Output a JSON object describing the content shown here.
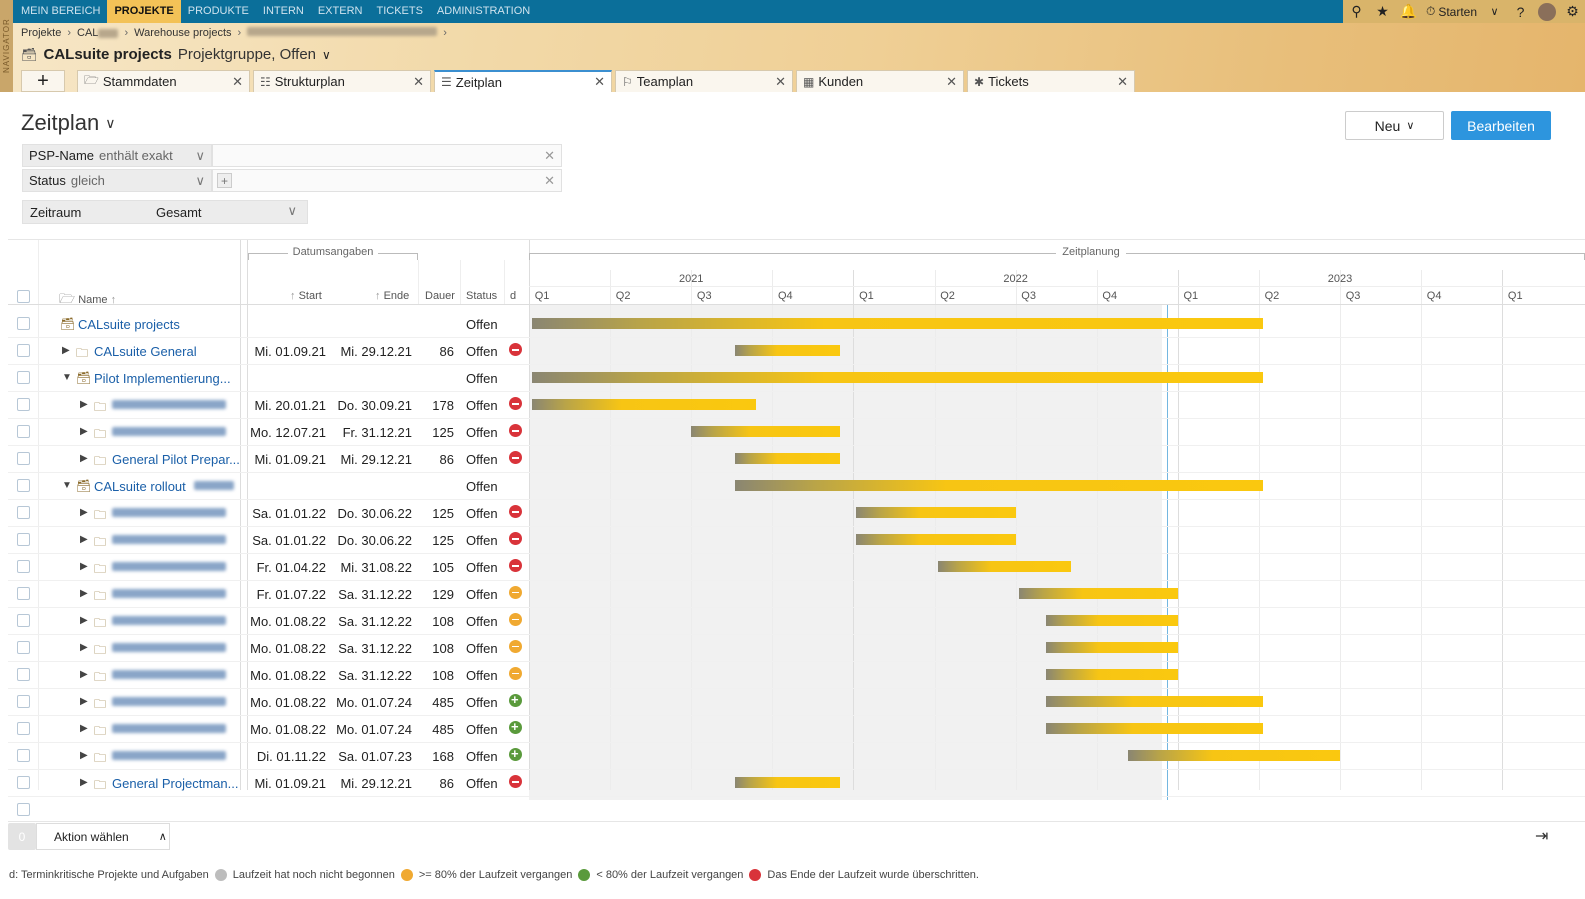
{
  "topbar": {
    "navigator_label": "NAVIGATOR",
    "menu": [
      "MEIN BEREICH",
      "PROJEKTE",
      "PRODUKTE",
      "INTERN",
      "EXTERN",
      "TICKETS",
      "ADMINISTRATION"
    ],
    "active_menu": "PROJEKTE",
    "start_label": "Starten"
  },
  "header": {
    "breadcrumb": [
      "Projekte",
      "CAL",
      "Warehouse projects"
    ],
    "project_name": "CALsuite projects",
    "project_type": "Projektgruppe, Offen",
    "tabs": [
      {
        "label": "Stammdaten",
        "icon": "folder-icon"
      },
      {
        "label": "Strukturplan",
        "icon": "structure-icon"
      },
      {
        "label": "Zeitplan",
        "icon": "timeline-icon",
        "active": true
      },
      {
        "label": "Teamplan",
        "icon": "team-icon"
      },
      {
        "label": "Kunden",
        "icon": "customers-icon"
      },
      {
        "label": "Tickets",
        "icon": "tickets-icon"
      }
    ]
  },
  "page": {
    "title": "Zeitplan",
    "new_label": "Neu",
    "edit_label": "Bearbeiten"
  },
  "filters": {
    "psp": {
      "field": "PSP-Name",
      "op": "enthält exakt",
      "value": ""
    },
    "status": {
      "field": "Status",
      "op": "gleich",
      "value": ""
    },
    "zeitraum": {
      "field": "Zeitraum",
      "value": "Gesamt"
    }
  },
  "grid": {
    "group_dates": "Datumsangaben",
    "group_plan": "Zeitplanung",
    "col_name": "Name",
    "col_start": "Start",
    "col_end": "Ende",
    "col_duration": "Dauer",
    "col_status": "Status",
    "col_d": "d",
    "years": [
      "2021",
      "2022",
      "2023"
    ],
    "quarters": [
      "Q1",
      "Q2",
      "Q3",
      "Q4",
      "Q1",
      "Q2",
      "Q3",
      "Q4",
      "Q1",
      "Q2",
      "Q3",
      "Q4",
      "Q1"
    ],
    "rows": [
      {
        "name": "CALsuite projects",
        "level": 0,
        "toggle": "none",
        "icon": "group",
        "start": "",
        "end": "",
        "dur": "",
        "status": "Offen",
        "d": "",
        "bar": [
          0,
          9.05
        ]
      },
      {
        "name": "CALsuite General",
        "level": 1,
        "toggle": "closed",
        "icon": "folder",
        "start": "Mi. 01.09.21",
        "end": "Mi. 29.12.21",
        "dur": "86",
        "status": "Offen",
        "d": "red",
        "bar": [
          2.5,
          3.83
        ]
      },
      {
        "name": "Pilot Implementierung...",
        "level": 1,
        "toggle": "open",
        "icon": "group",
        "start": "",
        "end": "",
        "dur": "",
        "status": "Offen",
        "d": "",
        "bar": [
          0,
          9.05
        ]
      },
      {
        "name": "",
        "level": 2,
        "toggle": "closed",
        "icon": "folder",
        "blur": true,
        "start": "Mi. 20.01.21",
        "end": "Do. 30.09.21",
        "dur": "178",
        "status": "Offen",
        "d": "red",
        "bar": [
          0,
          2.8
        ]
      },
      {
        "name": "",
        "level": 2,
        "toggle": "closed",
        "icon": "folder",
        "blur": true,
        "start": "Mo. 12.07.21",
        "end": "Fr. 31.12.21",
        "dur": "125",
        "status": "Offen",
        "d": "red",
        "bar": [
          1.96,
          3.84
        ]
      },
      {
        "name": "General Pilot Prepar...",
        "level": 2,
        "toggle": "closed",
        "icon": "folder",
        "start": "Mi. 01.09.21",
        "end": "Mi. 29.12.21",
        "dur": "86",
        "status": "Offen",
        "d": "red",
        "bar": [
          2.5,
          3.83
        ]
      },
      {
        "name": "CALsuite rollout",
        "level": 1,
        "toggle": "open",
        "icon": "group",
        "blurSuffix": true,
        "start": "",
        "end": "",
        "dur": "",
        "status": "Offen",
        "d": "",
        "bar": [
          2.5,
          9.05
        ]
      },
      {
        "name": "",
        "level": 2,
        "toggle": "closed",
        "icon": "folder",
        "blur": true,
        "start": "Sa. 01.01.22",
        "end": "Do. 30.06.22",
        "dur": "125",
        "status": "Offen",
        "d": "red",
        "bar": [
          4,
          6
        ]
      },
      {
        "name": "",
        "level": 2,
        "toggle": "closed",
        "icon": "folder",
        "blur": true,
        "start": "Sa. 01.01.22",
        "end": "Do. 30.06.22",
        "dur": "125",
        "status": "Offen",
        "d": "red",
        "bar": [
          4,
          6
        ]
      },
      {
        "name": "",
        "level": 2,
        "toggle": "closed",
        "icon": "folder",
        "blur": true,
        "start": "Fr. 01.04.22",
        "end": "Mi. 31.08.22",
        "dur": "105",
        "status": "Offen",
        "d": "red",
        "bar": [
          5,
          6.68
        ]
      },
      {
        "name": "",
        "level": 2,
        "toggle": "closed",
        "icon": "folder",
        "blur": true,
        "start": "Fr. 01.07.22",
        "end": "Sa. 31.12.22",
        "dur": "129",
        "status": "Offen",
        "d": "orange",
        "bar": [
          6,
          8
        ]
      },
      {
        "name": "",
        "level": 2,
        "toggle": "closed",
        "icon": "folder",
        "blur": true,
        "start": "Mo. 01.08.22",
        "end": "Sa. 31.12.22",
        "dur": "108",
        "status": "Offen",
        "d": "orange",
        "bar": [
          6.34,
          8
        ]
      },
      {
        "name": "",
        "level": 2,
        "toggle": "closed",
        "icon": "folder",
        "blur": true,
        "start": "Mo. 01.08.22",
        "end": "Sa. 31.12.22",
        "dur": "108",
        "status": "Offen",
        "d": "orange",
        "bar": [
          6.34,
          8
        ]
      },
      {
        "name": "",
        "level": 2,
        "toggle": "closed",
        "icon": "folder",
        "blur": true,
        "start": "Mo. 01.08.22",
        "end": "Sa. 31.12.22",
        "dur": "108",
        "status": "Offen",
        "d": "orange",
        "bar": [
          6.34,
          8
        ]
      },
      {
        "name": "",
        "level": 2,
        "toggle": "closed",
        "icon": "folder",
        "blur": true,
        "start": "Mo. 01.08.22",
        "end": "Mo. 01.07.24",
        "dur": "485",
        "status": "Offen",
        "d": "green",
        "bar": [
          6.34,
          9.05
        ]
      },
      {
        "name": "",
        "level": 2,
        "toggle": "closed",
        "icon": "folder",
        "blur": true,
        "start": "Mo. 01.08.22",
        "end": "Mo. 01.07.24",
        "dur": "485",
        "status": "Offen",
        "d": "green",
        "bar": [
          6.34,
          9.05
        ]
      },
      {
        "name": "",
        "level": 2,
        "toggle": "closed",
        "icon": "folder",
        "blur": true,
        "start": "Di. 01.11.22",
        "end": "Sa. 01.07.23",
        "dur": "168",
        "status": "Offen",
        "d": "green",
        "bar": [
          7.35,
          10
        ]
      },
      {
        "name": "General Projectman...",
        "level": 2,
        "toggle": "closed",
        "icon": "folder",
        "start": "Mi. 01.09.21",
        "end": "Mi. 29.12.21",
        "dur": "86",
        "status": "Offen",
        "d": "red",
        "bar": [
          2.5,
          3.83
        ]
      }
    ]
  },
  "footer": {
    "selected_count": "0",
    "action_label": "Aktion wählen",
    "legend_d": "d: Terminkritische Projekte und Aufgaben",
    "legend_grey": "Laufzeit hat noch nicht begonnen",
    "legend_orange": ">= 80% der Laufzeit vergangen",
    "legend_green": "< 80% der Laufzeit vergangen",
    "legend_red": "Das Ende der Laufzeit wurde überschritten."
  },
  "colors": {
    "accent": "#2d95de",
    "topbar": "#0b6f9a",
    "bar": "#fac80f",
    "red": "#d9333a",
    "orange": "#f0a931",
    "green": "#5a9a3c"
  }
}
